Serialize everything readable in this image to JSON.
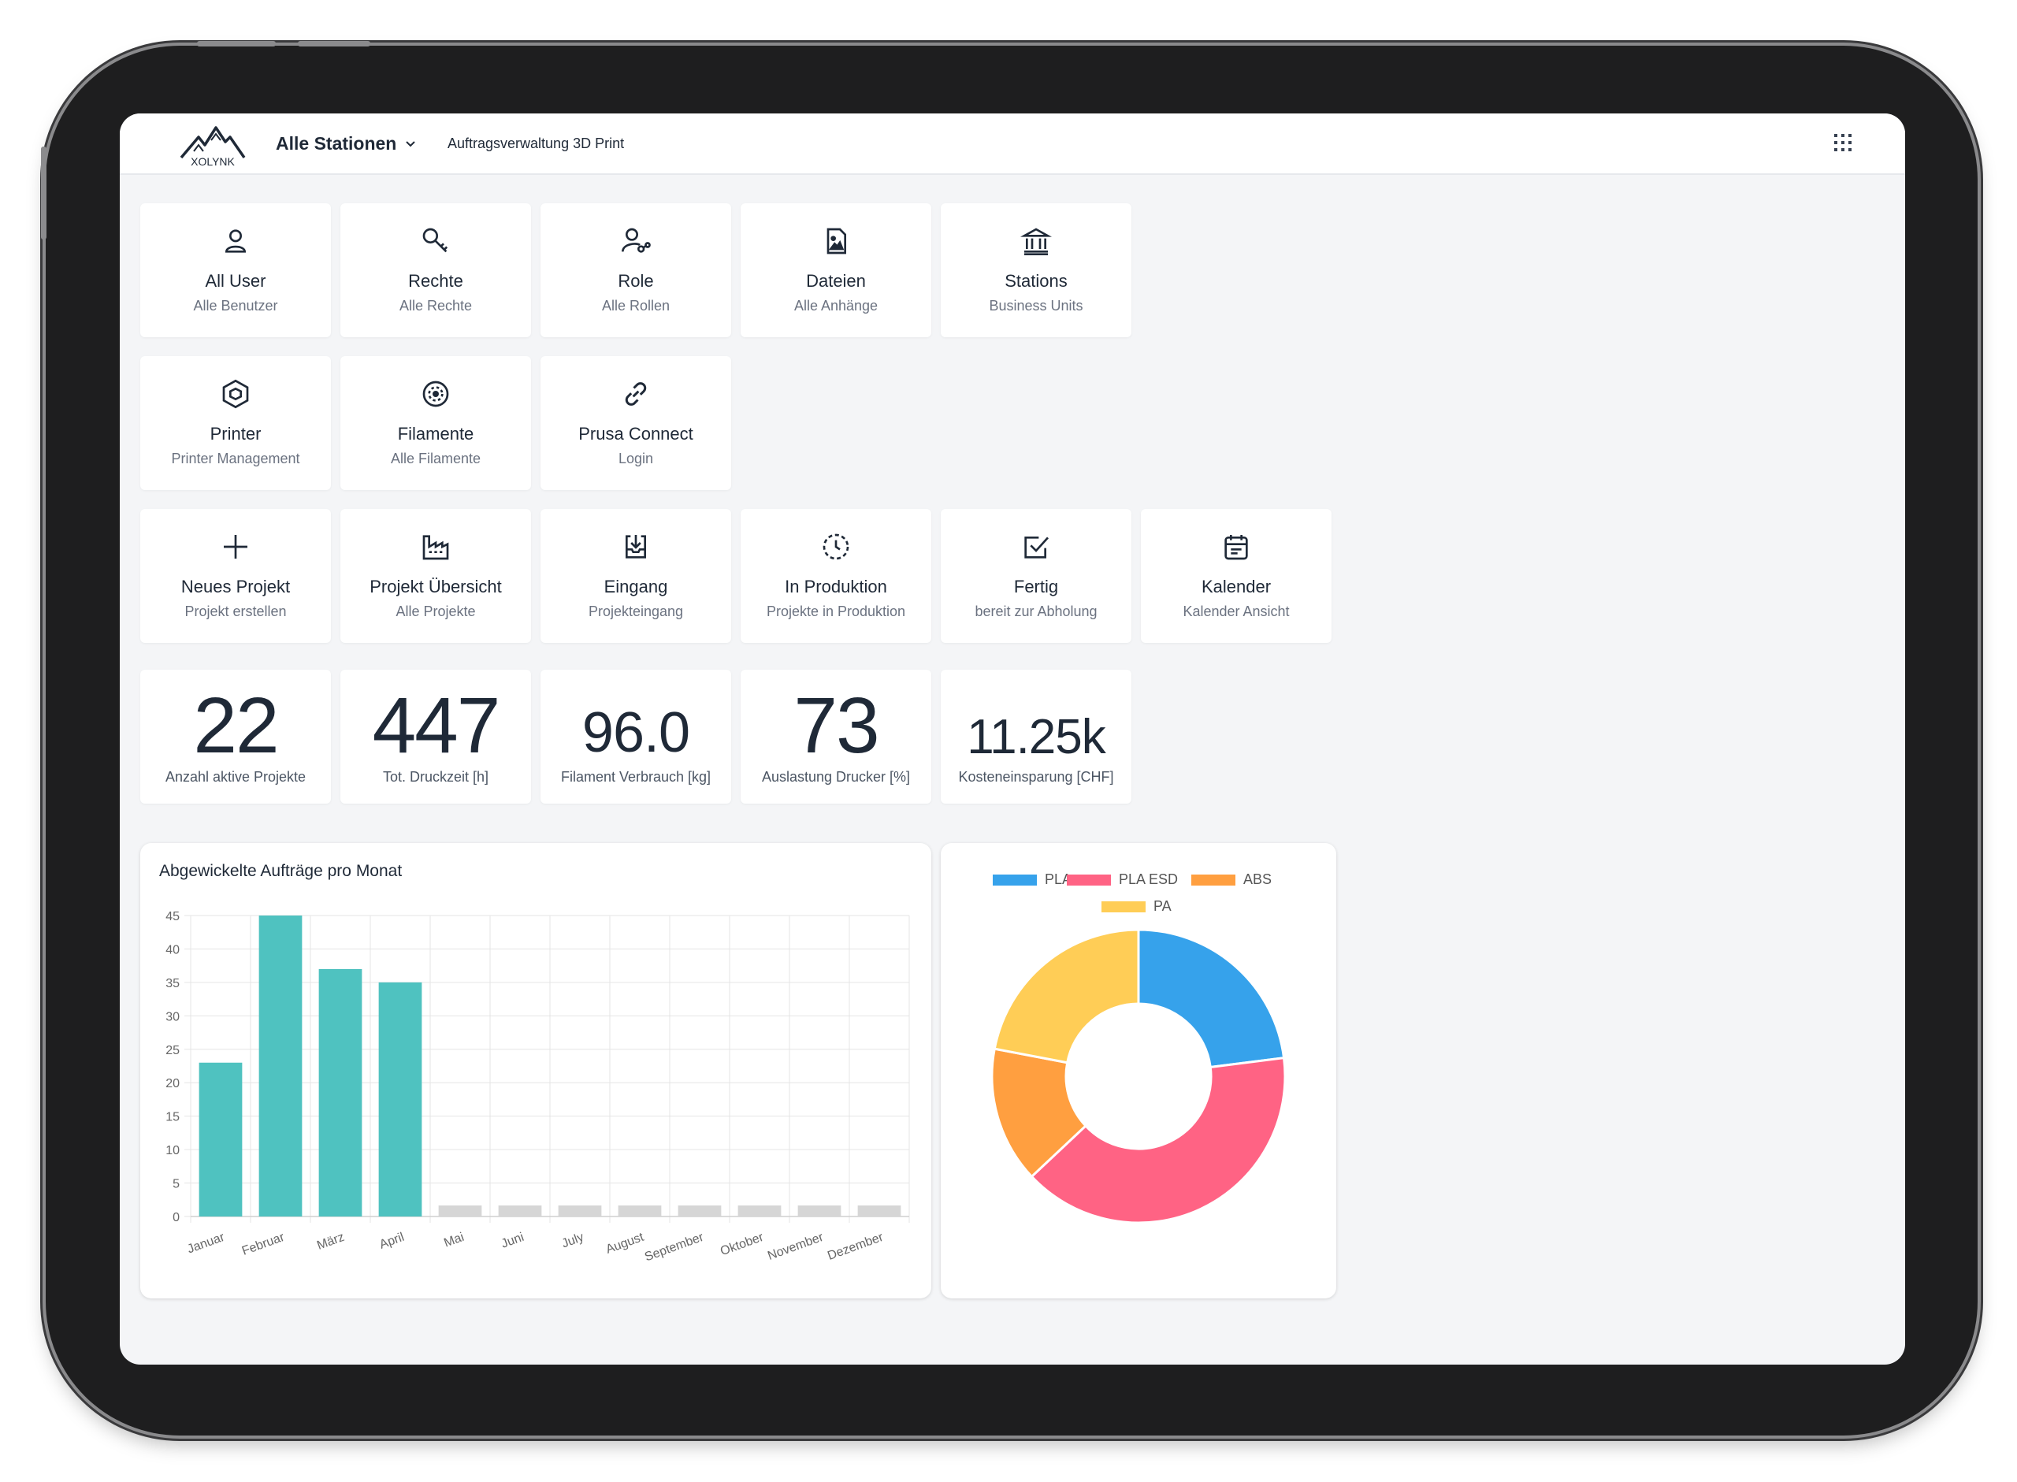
{
  "header": {
    "station_label": "Alle Stationen",
    "subtitle": "Auftragsverwaltung 3D Print",
    "logo_text": "XOLYNK"
  },
  "admin_tiles": [
    {
      "icon": "user-icon",
      "label": "All User",
      "sub": "Alle Benutzer"
    },
    {
      "icon": "key-icon",
      "label": "Rechte",
      "sub": "Alle Rechte"
    },
    {
      "icon": "user-link-icon",
      "label": "Role",
      "sub": "Alle Rollen"
    },
    {
      "icon": "file-image-icon",
      "label": "Dateien",
      "sub": "Alle Anhänge"
    },
    {
      "icon": "bank-icon",
      "label": "Stations",
      "sub": "Business Units"
    }
  ],
  "device_tiles": [
    {
      "icon": "hexagon-box-icon",
      "label": "Printer",
      "sub": "Printer Management"
    },
    {
      "icon": "filament-spool-icon",
      "label": "Filamente",
      "sub": "Alle Filamente"
    },
    {
      "icon": "link-icon",
      "label": "Prusa Connect",
      "sub": "Login"
    }
  ],
  "project_tiles": [
    {
      "icon": "plus-icon",
      "label": "Neues Projekt",
      "sub": "Projekt erstellen"
    },
    {
      "icon": "factory-icon",
      "label": "Projekt Übersicht",
      "sub": "Alle Projekte"
    },
    {
      "icon": "inbox-download-icon",
      "label": "Eingang",
      "sub": "Projekteingang"
    },
    {
      "icon": "clock-dashed-icon",
      "label": "In Produktion",
      "sub": "Projekte in Produktion"
    },
    {
      "icon": "checkbox-icon",
      "label": "Fertig",
      "sub": "bereit zur Abholung"
    },
    {
      "icon": "calendar-icon",
      "label": "Kalender",
      "sub": "Kalender Ansicht"
    }
  ],
  "stats": [
    {
      "value": "22",
      "label": "Anzahl aktive Projekte"
    },
    {
      "value": "447",
      "label": "Tot. Druckzeit [h]"
    },
    {
      "value": "96.0",
      "label": "Filament Verbrauch [kg]"
    },
    {
      "value": "73",
      "label": "Auslastung Drucker [%]"
    },
    {
      "value": "11.25k",
      "label": "Kosteneinsparung [CHF]"
    }
  ],
  "chart_data": [
    {
      "type": "bar",
      "title": "Abgewickelte Aufträge pro Monat",
      "categories": [
        "Januar",
        "Februar",
        "März",
        "April",
        "Mai",
        "Juni",
        "July",
        "August",
        "September",
        "Oktober",
        "November",
        "Dezember"
      ],
      "values": [
        23,
        45,
        37,
        35,
        0,
        0,
        0,
        0,
        0,
        0,
        0,
        0
      ],
      "ylim": [
        0,
        45
      ],
      "yticks": [
        "0",
        "5",
        "10",
        "15",
        "20",
        "25",
        "30",
        "35",
        "40",
        "45"
      ],
      "bar_color": "#4fc2c0",
      "empty_color": "#d6d6d6",
      "grid": true
    },
    {
      "type": "pie",
      "donut": true,
      "labels": [
        "PLA",
        "PLA ESD",
        "ABS",
        "PA"
      ],
      "values": [
        23,
        40,
        15,
        22
      ],
      "colors": [
        "#36a2eb",
        "#ff6384",
        "#ff9f40",
        "#ffcd56"
      ],
      "legend": "top"
    }
  ]
}
